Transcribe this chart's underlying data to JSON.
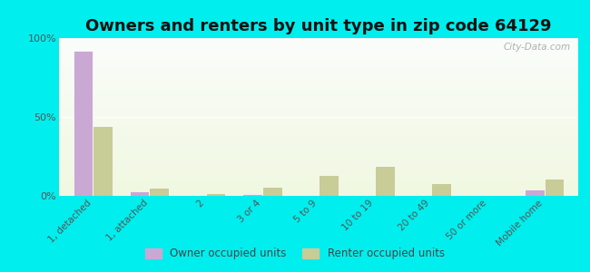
{
  "title": "Owners and renters by unit type in zip code 64129",
  "categories": [
    "1, detached",
    "1, attached",
    "2",
    "3 or 4",
    "5 to 9",
    "10 to 19",
    "20 to 49",
    "50 or more",
    "Mobile home"
  ],
  "owner_values": [
    92,
    3,
    0,
    1,
    0,
    0,
    0,
    0,
    4
  ],
  "renter_values": [
    44,
    5,
    2,
    6,
    13,
    19,
    8,
    0,
    11
  ],
  "owner_color": "#c9a8d4",
  "renter_color": "#c8cc96",
  "background_color": "#00eeee",
  "ylim": [
    0,
    100
  ],
  "yticks": [
    0,
    50,
    100
  ],
  "ytick_labels": [
    "0%",
    "50%",
    "100%"
  ],
  "legend_owner": "Owner occupied units",
  "legend_renter": "Renter occupied units",
  "title_fontsize": 13,
  "bar_width": 0.35,
  "watermark": "City-Data.com"
}
